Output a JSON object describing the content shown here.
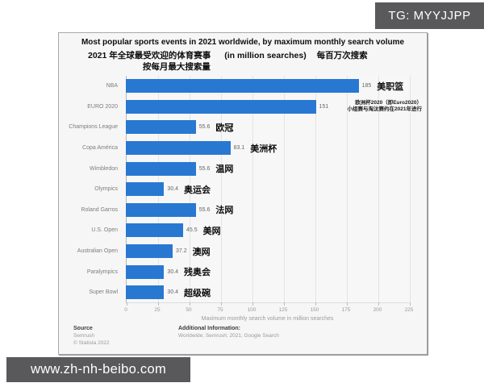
{
  "watermarks": {
    "top_right": "TG: MYYJJPP",
    "bottom_left": "www.zh-nh-beibo.com"
  },
  "chart_data": {
    "type": "bar",
    "orientation": "horizontal",
    "title_en": "Most popular sports events in 2021 worldwide, by maximum monthly search volume",
    "subtitle_zh_left": "2021 年全球最受欢迎的体育赛事",
    "subtitle_en": "(in million searches)",
    "subtitle_zh_right": "每百万次搜索",
    "subtitle_zh_sub": "按每月最大搜索量",
    "categories": [
      "NBA",
      "EURO 2020",
      "Champions League",
      "Copa América",
      "Wimbledon",
      "Olympics",
      "Roland Garros",
      "U.S. Open",
      "Australian Open",
      "Paralympics",
      "Super Bowl"
    ],
    "values": [
      185,
      151,
      55.6,
      83.1,
      55.6,
      30.4,
      55.6,
      45.5,
      37.2,
      30.4,
      30.4
    ],
    "value_labels": [
      "185",
      "151",
      "55.6",
      "83.1",
      "55.6",
      "30.4",
      "55.6",
      "45.5",
      "37.2",
      "30.4",
      "30.4"
    ],
    "zh_labels": [
      "美职篮",
      "",
      "欧冠",
      "美洲杯",
      "温网",
      "奥运会",
      "法网",
      "美网",
      "澳网",
      "残奥会",
      "超级碗"
    ],
    "euro_note": [
      "欧洲杯2020（即Euro2020）",
      "小组赛与淘汰赛约在2021年进行"
    ],
    "x_ticks": [
      "0",
      "25",
      "50",
      "75",
      "100",
      "125",
      "150",
      "175",
      "200",
      "225"
    ],
    "xlim": [
      0,
      225
    ],
    "xlabel": "Maximum monthly search volume in million searches",
    "bar_color": "#2878d2",
    "grid": "vertical",
    "legend": "none"
  },
  "footer": {
    "source_label": "Source",
    "source_name": "Semrush",
    "copyright": "© Statista 2022",
    "additional_label": "Additional Information:",
    "additional_text": "Worldwide; Semrush; 2021; Google Search"
  }
}
